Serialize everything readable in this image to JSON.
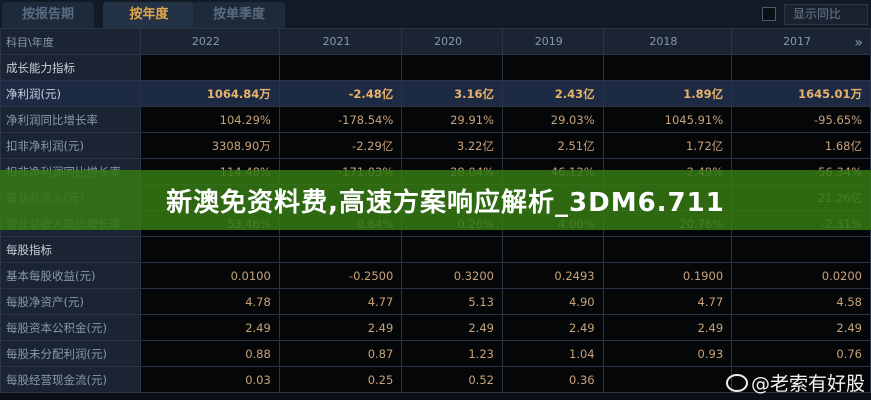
{
  "tabs": [
    {
      "label": "按报告期"
    },
    {
      "label": "按年度"
    },
    {
      "label": "按单季度"
    }
  ],
  "show_yoy_label": "显示同比",
  "header": {
    "label": "科目\\年度",
    "years": [
      "2022",
      "2021",
      "2020",
      "2019",
      "2018",
      "2017"
    ]
  },
  "more_icon": "double-chevron-right-icon",
  "rows": [
    {
      "label": "成长能力指标",
      "section": true,
      "values": [
        "",
        "",
        "",
        "",
        "",
        ""
      ]
    },
    {
      "label": "净利润(元)",
      "values": [
        "1064.84万",
        "-2.48亿",
        "3.16亿",
        "2.43亿",
        "1.89亿",
        "1645.01万"
      ]
    },
    {
      "label": "净利润同比增长率",
      "values": [
        "104.29%",
        "-178.54%",
        "29.91%",
        "29.03%",
        "1045.91%",
        "-95.65%"
      ]
    },
    {
      "label": "扣非净利润(元)",
      "values": [
        "3308.90万",
        "-2.29亿",
        "3.22亿",
        "2.51亿",
        "1.72亿",
        "1.68亿"
      ]
    },
    {
      "label": "扣非净利润同比增长率",
      "values": [
        "114.48%",
        "-171.03%",
        "28.04%",
        "46.12%",
        "2.49%",
        "-56.34%"
      ]
    },
    {
      "label": "营业总收入(元)",
      "values": [
        "",
        "",
        "",
        "",
        "",
        "21.26亿"
      ]
    },
    {
      "label": "营业总收入同比增长率",
      "values": [
        "53.46%",
        "0.84%",
        "0.26%",
        "4.00%",
        "20.76%",
        "-2.31%"
      ]
    },
    {
      "label": "每股指标",
      "section": true,
      "values": [
        "",
        "",
        "",
        "",
        "",
        ""
      ]
    },
    {
      "label": "基本每股收益(元)",
      "values": [
        "0.0100",
        "-0.2500",
        "0.3200",
        "0.2493",
        "0.1900",
        "0.0200"
      ]
    },
    {
      "label": "每股净资产(元)",
      "values": [
        "4.78",
        "4.77",
        "5.13",
        "4.90",
        "4.77",
        "4.58"
      ]
    },
    {
      "label": "每股资本公积金(元)",
      "values": [
        "2.49",
        "2.49",
        "2.49",
        "2.49",
        "2.49",
        "2.49"
      ]
    },
    {
      "label": "每股未分配利润(元)",
      "values": [
        "0.88",
        "0.87",
        "1.23",
        "1.04",
        "0.93",
        "0.76"
      ]
    },
    {
      "label": "每股经营现金流(元)",
      "values": [
        "0.03",
        "0.25",
        "0.52",
        "0.36",
        "",
        ""
      ]
    }
  ],
  "banner": "新澳免资料费,高速方案响应解析_3DM6.711",
  "watermark": "@老索有好股",
  "colors": {
    "accent": "#e0a64a",
    "banner": "#347814"
  }
}
